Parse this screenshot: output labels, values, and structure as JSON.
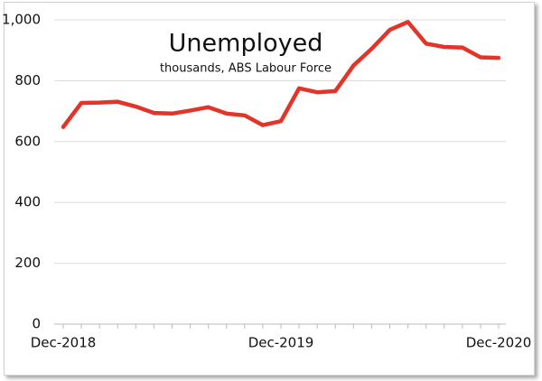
{
  "chart_data": {
    "type": "line",
    "title": "Unemployed",
    "subtitle": "thousands, ABS Labour Force",
    "categories": [
      "Dec-2018",
      null,
      null,
      null,
      null,
      null,
      null,
      null,
      null,
      null,
      null,
      null,
      "Dec-2019",
      null,
      null,
      null,
      null,
      null,
      null,
      null,
      null,
      null,
      null,
      null,
      "Dec-2020"
    ],
    "series": [
      {
        "name": "Unemployed",
        "color": "#e3342a",
        "values": [
          648,
          727,
          728,
          731,
          715,
          694,
          692,
          702,
          713,
          692,
          686,
          654,
          667,
          775,
          762,
          766,
          850,
          905,
          967,
          993,
          922,
          911,
          909,
          877,
          875
        ]
      }
    ],
    "ylim": [
      0,
      1000
    ],
    "yticks": [
      0,
      200,
      400,
      600,
      800,
      {
        "value": 1000,
        "label": "1,000"
      }
    ],
    "grid": true
  }
}
